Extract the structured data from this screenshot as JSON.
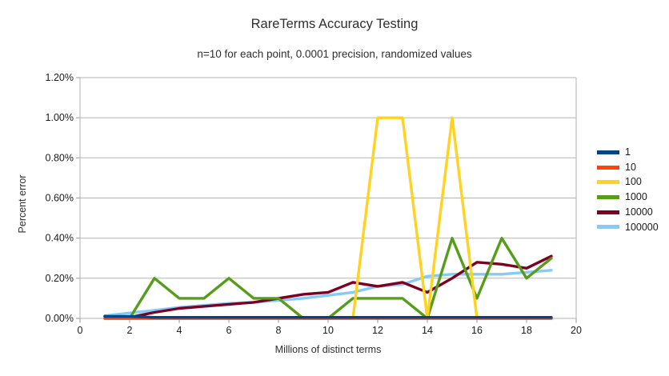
{
  "chart_data": {
    "type": "line",
    "title": "RareTerms Accuracy Testing",
    "subtitle": "n=10 for each point, 0.0001 precision, randomized values",
    "xlabel": "Millions of distinct terms",
    "ylabel": "Percent error",
    "xlim": [
      0,
      20
    ],
    "ylim_percent": [
      0.0,
      1.2
    ],
    "grid": true,
    "legend_position": "right",
    "xticks": [
      "0",
      "2",
      "4",
      "6",
      "8",
      "10",
      "12",
      "14",
      "16",
      "18",
      "20"
    ],
    "yticks": [
      "0.00%",
      "0.20%",
      "0.40%",
      "0.60%",
      "0.80%",
      "1.00%",
      "1.20%"
    ],
    "x": [
      1,
      2,
      3,
      4,
      5,
      6,
      7,
      8,
      9,
      10,
      11,
      12,
      13,
      14,
      15,
      16,
      17,
      18,
      19
    ],
    "series": [
      {
        "name": "1",
        "color": "#004586",
        "values": [
          0.01,
          0.01,
          0.005,
          0.005,
          0.005,
          0.005,
          0.005,
          0.005,
          0.005,
          0.005,
          0.005,
          0.005,
          0.005,
          0.005,
          0.005,
          0.005,
          0.005,
          0.005,
          0.005
        ]
      },
      {
        "name": "10",
        "color": "#ff420e",
        "values": [
          0.0,
          0.0,
          0.0,
          0.0,
          0.0,
          0.0,
          0.0,
          0.0,
          0.0,
          0.0,
          0.0,
          0.0,
          0.0,
          0.0,
          0.0,
          0.0,
          0.0,
          0.0,
          0.0
        ]
      },
      {
        "name": "100",
        "color": "#ffd320",
        "values": [
          0.0,
          0.0,
          0.0,
          0.0,
          0.0,
          0.0,
          0.0,
          0.0,
          0.0,
          0.0,
          0.0,
          1.0,
          1.0,
          0.0,
          1.0,
          0.0,
          0.0,
          0.0,
          0.0
        ]
      },
      {
        "name": "1000",
        "color": "#579d1c",
        "values": [
          0.0,
          0.0,
          0.2,
          0.1,
          0.1,
          0.2,
          0.1,
          0.1,
          0.0,
          0.0,
          0.1,
          0.1,
          0.1,
          0.0,
          0.4,
          0.1,
          0.4,
          0.2,
          0.3
        ]
      },
      {
        "name": "10000",
        "color": "#7e0021",
        "values": [
          0.01,
          0.005,
          0.03,
          0.05,
          0.06,
          0.07,
          0.08,
          0.1,
          0.12,
          0.13,
          0.18,
          0.16,
          0.18,
          0.13,
          0.2,
          0.28,
          0.27,
          0.25,
          0.31
        ]
      },
      {
        "name": "100000",
        "color": "#83caff",
        "values": [
          0.013,
          0.027,
          0.04,
          0.055,
          0.065,
          0.075,
          0.08,
          0.09,
          0.1,
          0.115,
          0.13,
          0.16,
          0.17,
          0.21,
          0.22,
          0.22,
          0.22,
          0.23,
          0.24
        ]
      }
    ],
    "draw_order": [
      "100000",
      "10000",
      "1000",
      "100",
      "10",
      "1"
    ]
  }
}
